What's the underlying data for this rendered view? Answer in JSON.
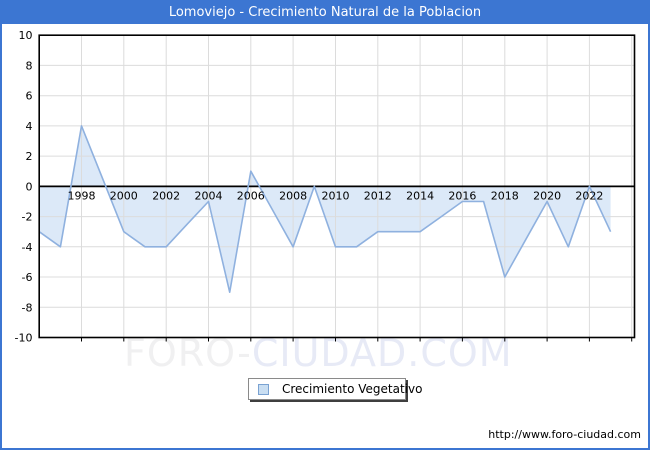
{
  "window": {
    "title": "Lomoviejo - Crecimiento Natural de la Poblacion",
    "accent_color": "#3c76d2"
  },
  "chart_data": {
    "type": "area",
    "title": "Lomoviejo - Crecimiento Natural de la Poblacion",
    "xlabel": "",
    "ylabel": "",
    "x": [
      1996,
      1997,
      1998,
      1999,
      2000,
      2001,
      2002,
      2003,
      2004,
      2005,
      2006,
      2007,
      2008,
      2009,
      2010,
      2011,
      2012,
      2013,
      2014,
      2015,
      2016,
      2017,
      2018,
      2019,
      2020,
      2021,
      2022,
      2023
    ],
    "series": [
      {
        "name": "Crecimiento Vegetativo",
        "values": [
          -3,
          -4,
          4,
          0.5,
          -3,
          -4,
          -4,
          -2.5,
          -1,
          -7,
          1,
          -1.5,
          -4,
          0,
          -4,
          -4,
          -3,
          -3,
          -3,
          -2,
          -1,
          -1,
          -6,
          -3.5,
          -1,
          -4,
          0,
          -3
        ]
      }
    ],
    "ylim": [
      -10,
      10
    ],
    "xlim": [
      1996,
      2024.13
    ],
    "y_ticks": [
      10,
      8,
      6,
      4,
      2,
      0,
      -2,
      -4,
      -6,
      -8,
      -10
    ],
    "y_gridline_values": [
      8,
      6,
      4,
      2,
      -2,
      -4,
      -6,
      -8
    ],
    "x_tick_labels": [
      1998,
      2000,
      2002,
      2004,
      2006,
      2008,
      2010,
      2012,
      2014,
      2016,
      2018,
      2020,
      2022
    ],
    "x_gridline_years": [
      1998,
      2000,
      2002,
      2004,
      2006,
      2008,
      2010,
      2012,
      2014,
      2016,
      2018,
      2020,
      2022,
      2024
    ],
    "grid": true,
    "legend_position": "bottom-center",
    "line_color": "#8fb1df",
    "fill_color": "#dce9f8",
    "axis_color": "#000000",
    "gridline_color": "#dcdcdc"
  },
  "legend": {
    "label": "Crecimiento Vegetativo",
    "swatch_fill": "#c9def2",
    "swatch_border": "#7aa2d2"
  },
  "watermark": {
    "part1": "FORO-",
    "part2": "CIUDAD.COM"
  },
  "footer": {
    "url": "http://www.foro-ciudad.com"
  }
}
